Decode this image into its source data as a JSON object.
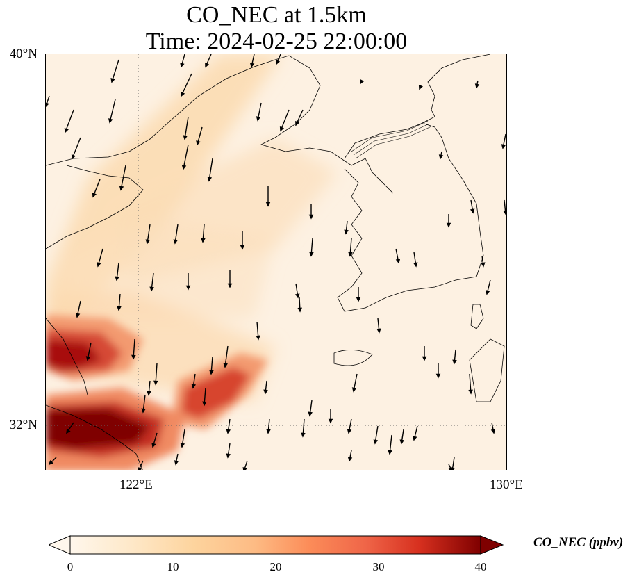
{
  "title": {
    "line1": "CO_NEC at 1.5km",
    "line2": "Time: 2024-02-25 22:00:00"
  },
  "map": {
    "extent": {
      "lon_min": 120,
      "lon_max": 130,
      "lat_min": 31,
      "lat_max": 40
    },
    "lat_ticks": [
      {
        "value": 40,
        "label": "40°N"
      },
      {
        "value": 32,
        "label": "32°N"
      }
    ],
    "lon_ticks": [
      {
        "value": 122,
        "label": "122°E"
      },
      {
        "value": 130,
        "label": "130°E"
      }
    ],
    "gridlines": {
      "lon": [
        122
      ],
      "lat": [
        32
      ],
      "style": "dotted"
    },
    "features": [
      "coastlines",
      "country borders",
      "wind vectors"
    ],
    "field": "CO_NEC",
    "plume_description": "high concentrations (30-40 ppbv) near Yangtze River delta around 32°N 120-122°E, a secondary plume extending northeast to about 123.5°E 32.8°N; low values (0-10 ppbv) over the Yellow Sea and Korea",
    "wind_direction": "predominantly northerly, arrows pointing south"
  },
  "colorbar": {
    "label": "CO_NEC (ppbv)",
    "colormap": "OrRd",
    "min": 0,
    "max": 40,
    "ticks": [
      "0",
      "10",
      "20",
      "30",
      "40"
    ],
    "extend": "both"
  }
}
